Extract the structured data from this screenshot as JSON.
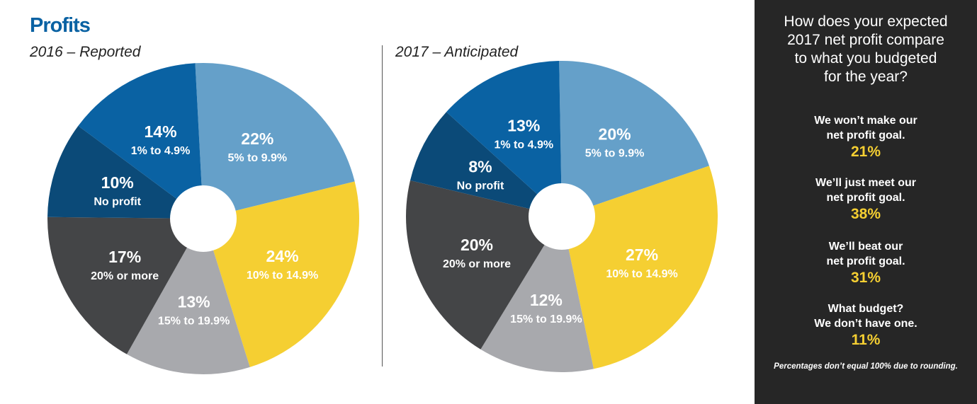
{
  "title": "Profits",
  "chart_data": [
    {
      "type": "pie",
      "subtitle": "2016 – Reported",
      "slices": [
        {
          "pct_label": "22%",
          "label": "5% to 9.9%",
          "value": 22,
          "color": "#65a0c9"
        },
        {
          "pct_label": "24%",
          "label": "10% to 14.9%",
          "value": 24,
          "color": "#f5cf32"
        },
        {
          "pct_label": "13%",
          "label": "15% to 19.9%",
          "value": 13,
          "color": "#a8a9ad"
        },
        {
          "pct_label": "17%",
          "label": "20% or more",
          "value": 17,
          "color": "#444547"
        },
        {
          "pct_label": "10%",
          "label": "No profit",
          "value": 10,
          "color": "#0b4a78"
        },
        {
          "pct_label": "14%",
          "label": "1% to 4.9%",
          "value": 14,
          "color": "#0a62a3"
        }
      ]
    },
    {
      "type": "pie",
      "subtitle": "2017 – Anticipated",
      "slices": [
        {
          "pct_label": "20%",
          "label": "5% to 9.9%",
          "value": 20,
          "color": "#65a0c9"
        },
        {
          "pct_label": "27%",
          "label": "10% to 14.9%",
          "value": 27,
          "color": "#f5cf32"
        },
        {
          "pct_label": "12%",
          "label": "15% to 19.9%",
          "value": 12,
          "color": "#a8a9ad"
        },
        {
          "pct_label": "20%",
          "label": "20% or more",
          "value": 20,
          "color": "#444547"
        },
        {
          "pct_label": "8%",
          "label": "No profit",
          "value": 8,
          "color": "#0b4a78"
        },
        {
          "pct_label": "13%",
          "label": "1% to 4.9%",
          "value": 13,
          "color": "#0a62a3"
        }
      ]
    }
  ],
  "sidebar": {
    "question_lines": [
      "How does your expected",
      "2017 net profit compare",
      "to what you budgeted",
      "for the year?"
    ],
    "answers": [
      {
        "line1": "We won’t make our",
        "line2": "net profit goal.",
        "pct": "21%"
      },
      {
        "line1": "We’ll just meet our",
        "line2": "net profit goal.",
        "pct": "38%"
      },
      {
        "line1": "We’ll beat our",
        "line2": "net profit goal.",
        "pct": "31%"
      },
      {
        "line1": "What budget?",
        "line2": "We don’t have one.",
        "pct": "11%"
      }
    ],
    "note": "Percentages don’t equal 100% due to rounding."
  }
}
